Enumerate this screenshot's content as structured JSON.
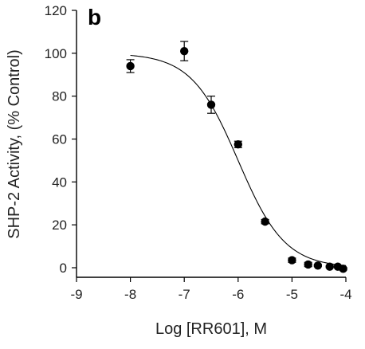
{
  "panel_label": "b",
  "chart_data": {
    "type": "scatter",
    "title": "",
    "xlabel": "Log [RR601], M",
    "ylabel": "SHP-2 Activity, (% Control)",
    "xlim": [
      -9,
      -4
    ],
    "ylim": [
      0,
      120
    ],
    "x_ticks": [
      -9,
      -8,
      -7,
      -6,
      -5,
      -4
    ],
    "y_ticks": [
      0,
      20,
      40,
      60,
      80,
      100,
      120
    ],
    "grid": false,
    "legend": "none",
    "series": [
      {
        "x": [
          -8,
          -7,
          -6.5,
          -6,
          -5.5,
          -5,
          -4.7,
          -4.52,
          -4.3,
          -4.15,
          -4.05
        ],
        "y": [
          94,
          101,
          76,
          57.5,
          21.5,
          3.5,
          1.5,
          1,
          0.5,
          0.5,
          -0.5
        ],
        "error": [
          3,
          4.5,
          4,
          1.5,
          1,
          1,
          1,
          0.5,
          0.5,
          0.5,
          0.5
        ]
      }
    ],
    "fit_curve": {
      "type": "sigmoid",
      "top": 100,
      "bottom": 0,
      "log_ic50": -6,
      "hill_slope": 1,
      "x_range": [
        -8,
        -4
      ]
    }
  }
}
